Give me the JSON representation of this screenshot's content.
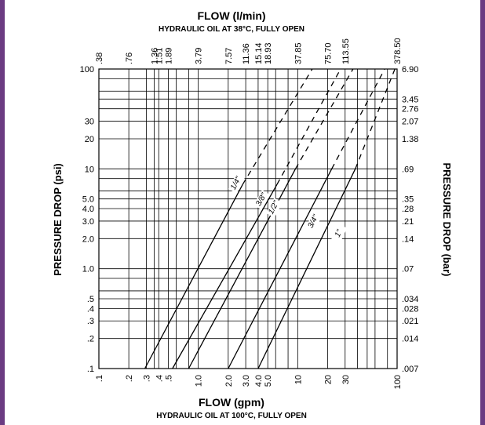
{
  "colors": {
    "frame": "#6b3b82",
    "background": "#ffffff",
    "ink": "#000000"
  },
  "chart_data": {
    "type": "line",
    "scale": {
      "x": "log",
      "y": "log"
    },
    "grid": true,
    "top_title": "FLOW (l/min)",
    "top_subtitle": "HYDRAULIC OIL AT 38°C, FULLY OPEN",
    "bottom_title": "FLOW (gpm)",
    "bottom_subtitle": "HYDRAULIC OIL AT 100°C, FULLY OPEN",
    "ylabel_left": "PRESSURE DROP (psi)",
    "ylabel_right": "PRESSURE DROP (bar)",
    "xlim": [
      0.1,
      100
    ],
    "ylim": [
      0.1,
      100
    ],
    "x_ticks": [
      {
        "v": 0.1,
        "label": ".1"
      },
      {
        "v": 0.2,
        "label": ".2"
      },
      {
        "v": 0.3,
        "label": ".3"
      },
      {
        "v": 0.4,
        "label": ".4"
      },
      {
        "v": 0.5,
        "label": ".5"
      },
      {
        "v": 1,
        "label": "1.0"
      },
      {
        "v": 2,
        "label": "2.0"
      },
      {
        "v": 3,
        "label": "3.0"
      },
      {
        "v": 4,
        "label": "4.0"
      },
      {
        "v": 5,
        "label": "5.0"
      },
      {
        "v": 10,
        "label": "10"
      },
      {
        "v": 20,
        "label": "20"
      },
      {
        "v": 30,
        "label": "30"
      },
      {
        "v": 100,
        "label": "100"
      }
    ],
    "top_ticks": [
      {
        "v": 0.1,
        "label": ".38"
      },
      {
        "v": 0.2,
        "label": ".76"
      },
      {
        "v": 0.36,
        "label": "1.36"
      },
      {
        "v": 0.4,
        "label": "1.51"
      },
      {
        "v": 0.5,
        "label": "1.89"
      },
      {
        "v": 1,
        "label": "3.79"
      },
      {
        "v": 2,
        "label": "7.57"
      },
      {
        "v": 3,
        "label": "11.36"
      },
      {
        "v": 4,
        "label": "15.14"
      },
      {
        "v": 5,
        "label": "18.93"
      },
      {
        "v": 10,
        "label": "37.85"
      },
      {
        "v": 20,
        "label": "75.70"
      },
      {
        "v": 30,
        "label": "113.55"
      },
      {
        "v": 100,
        "label": "378.50"
      }
    ],
    "y_ticks_left": [
      {
        "v": 100,
        "label": "100"
      },
      {
        "v": 30,
        "label": "30"
      },
      {
        "v": 20,
        "label": "20"
      },
      {
        "v": 10,
        "label": "10"
      },
      {
        "v": 5,
        "label": "5.0"
      },
      {
        "v": 4,
        "label": "4.0"
      },
      {
        "v": 3,
        "label": "3.0"
      },
      {
        "v": 2,
        "label": "2.0"
      },
      {
        "v": 1,
        "label": "1.0"
      },
      {
        "v": 0.5,
        "label": ".5"
      },
      {
        "v": 0.4,
        "label": ".4"
      },
      {
        "v": 0.3,
        "label": ".3"
      },
      {
        "v": 0.2,
        "label": ".2"
      },
      {
        "v": 0.1,
        "label": ".1"
      }
    ],
    "y_ticks_right": [
      {
        "v": 100,
        "label": "6.90"
      },
      {
        "v": 50,
        "label": "3.45"
      },
      {
        "v": 40,
        "label": "2.76"
      },
      {
        "v": 30,
        "label": "2.07"
      },
      {
        "v": 20,
        "label": "1.38"
      },
      {
        "v": 10,
        "label": ".69"
      },
      {
        "v": 5,
        "label": ".35"
      },
      {
        "v": 4,
        "label": ".28"
      },
      {
        "v": 3,
        "label": ".21"
      },
      {
        "v": 2,
        "label": ".14"
      },
      {
        "v": 1,
        "label": ".07"
      },
      {
        "v": 0.5,
        "label": ".034"
      },
      {
        "v": 0.4,
        "label": ".028"
      },
      {
        "v": 0.3,
        "label": ".021"
      },
      {
        "v": 0.2,
        "label": ".014"
      },
      {
        "v": 0.1,
        "label": ".007"
      }
    ],
    "series": [
      {
        "name": "1/4\"",
        "solid": [
          [
            0.29,
            0.1
          ],
          [
            2.8,
            7
          ]
        ],
        "dashed": [
          [
            2.8,
            7
          ],
          [
            14,
            100
          ]
        ],
        "label_at": [
          2.5,
          7
        ]
      },
      {
        "name": "3/8\"",
        "solid": [
          [
            0.55,
            0.1
          ],
          [
            6.2,
            7
          ]
        ],
        "dashed": [
          [
            6.2,
            7
          ],
          [
            27,
            100
          ]
        ],
        "label_at": [
          4.5,
          4.8
        ]
      },
      {
        "name": "1/2\"",
        "solid": [
          [
            0.8,
            0.1
          ],
          [
            9.5,
            10
          ]
        ],
        "dashed": [
          [
            9.5,
            10
          ],
          [
            36,
            100
          ]
        ],
        "label_at": [
          6,
          4
        ]
      },
      {
        "name": "3/4\"",
        "solid": [
          [
            2,
            0.1
          ],
          [
            22,
            10
          ]
        ],
        "dashed": [
          [
            22,
            10
          ],
          [
            75,
            100
          ]
        ],
        "label_at": [
          15,
          2.9
        ]
      },
      {
        "name": "1\"",
        "solid": [
          [
            4,
            0.1
          ],
          [
            38,
            10
          ]
        ],
        "dashed": [
          [
            38,
            10
          ],
          [
            95,
            100
          ]
        ],
        "label_at": [
          27,
          2.2
        ]
      }
    ]
  }
}
